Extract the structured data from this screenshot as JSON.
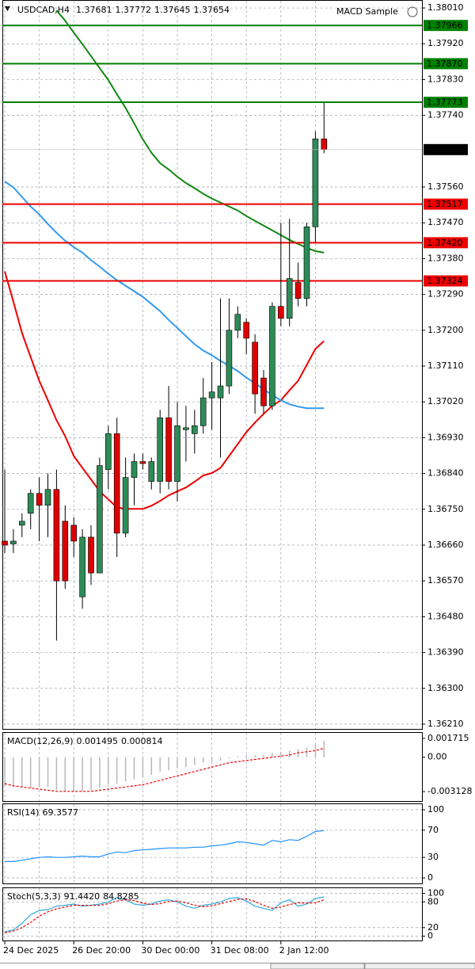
{
  "chart_data": [
    {
      "type": "candlestick",
      "title": "USDCAD,H4",
      "expert": "MACD Sample",
      "categories": [
        "24 Dec 2025",
        null,
        null,
        null,
        null,
        null,
        null,
        null,
        "26 Dec 20:00",
        null,
        null,
        null,
        null,
        null,
        null,
        null,
        "30 Dec 00:00",
        null,
        null,
        null,
        null,
        null,
        null,
        null,
        "31 Dec 08:00",
        null,
        null,
        null,
        null,
        null,
        null,
        null,
        "2 Jan 12:00",
        null,
        null,
        null,
        null,
        null
      ],
      "open": [
        1.3667,
        1.36663,
        1.3671,
        1.3674,
        1.3679,
        1.3676,
        1.368,
        1.3672,
        1.3671,
        1.3653,
        1.3668,
        1.3659,
        1.3685,
        1.3694,
        1.3669,
        1.3683,
        1.3687,
        1.3682,
        1.3682,
        1.3698,
        1.3682,
        1.3695,
        1.3694,
        1.3696,
        1.3703,
        1.3703,
        1.3706,
        1.372,
        1.3722,
        1.3717,
        1.3708,
        1.3701,
        1.3726,
        1.3723,
        1.3732,
        1.3728,
        1.3746,
        1.37681
      ],
      "high": [
        1.3685,
        1.367,
        1.3674,
        1.368,
        1.3683,
        1.3684,
        1.3685,
        1.3676,
        1.3673,
        1.367,
        1.3671,
        1.3688,
        1.3696,
        1.3698,
        1.3688,
        1.3689,
        1.3689,
        1.3688,
        1.37,
        1.3706,
        1.3702,
        1.3701,
        1.37,
        1.3708,
        1.3712,
        1.3728,
        1.3728,
        1.3726,
        1.3723,
        1.3719,
        1.371,
        1.3727,
        1.3747,
        1.3748,
        1.3737,
        1.3747,
        1.377,
        1.37772
      ],
      "low": [
        1.3664,
        1.3664,
        1.3668,
        1.367,
        1.3667,
        1.3668,
        1.3642,
        1.3655,
        1.3663,
        1.365,
        1.3656,
        1.3659,
        1.368,
        1.3663,
        1.3668,
        1.3676,
        1.3685,
        1.368,
        1.3679,
        1.368,
        1.3677,
        1.3687,
        1.3689,
        1.3694,
        1.3695,
        1.3688,
        1.3704,
        1.3718,
        1.3714,
        1.3699,
        1.3699,
        1.37,
        1.3721,
        1.3721,
        1.3726,
        1.3726,
        1.3742,
        1.37645
      ],
      "close": [
        1.3666,
        1.3667,
        1.3672,
        1.3679,
        1.3676,
        1.368,
        1.3657,
        1.3657,
        1.3667,
        1.3668,
        1.3659,
        1.3686,
        1.3694,
        1.3669,
        1.3683,
        1.3687,
        1.36865,
        1.3687,
        1.3698,
        1.3682,
        1.3696,
        1.36955,
        1.3696,
        1.3703,
        1.37045,
        1.3706,
        1.372,
        1.3724,
        1.3718,
        1.3704,
        1.3701,
        1.3726,
        1.3723,
        1.3733,
        1.3728,
        1.3746,
        1.37681,
        1.37654
      ],
      "up_color": "#2e8b57",
      "down_color": "#dd0000",
      "ylim": [
        1.36198,
        1.38028
      ],
      "yticks": [
        {
          "value": 1.3801,
          "label": "1.38010"
        },
        {
          "value": 1.3792,
          "label": "1.37920"
        },
        {
          "value": 1.3783,
          "label": "1.37830"
        },
        {
          "value": 1.3774,
          "label": "1.37740"
        },
        {
          "value": 1.3756,
          "label": "1.37560"
        },
        {
          "value": 1.3747,
          "label": "1.37470"
        },
        {
          "value": 1.3738,
          "label": "1.37380"
        },
        {
          "value": 1.3729,
          "label": "1.37290"
        },
        {
          "value": 1.372,
          "label": "1.37200"
        },
        {
          "value": 1.3711,
          "label": "1.37110"
        },
        {
          "value": 1.3702,
          "label": "1.37020"
        },
        {
          "value": 1.3693,
          "label": "1.36930"
        },
        {
          "value": 1.3684,
          "label": "1.36840"
        },
        {
          "value": 1.3675,
          "label": "1.36750"
        },
        {
          "value": 1.3666,
          "label": "1.36660"
        },
        {
          "value": 1.3657,
          "label": "1.36570"
        },
        {
          "value": 1.3648,
          "label": "1.36480"
        },
        {
          "value": 1.3639,
          "label": "1.36390"
        },
        {
          "value": 1.363,
          "label": "1.36300"
        },
        {
          "value": 1.3621,
          "label": "1.36210"
        }
      ],
      "grid": true,
      "current": 1.37654,
      "levels": [
        {
          "value": 1.37966,
          "color": "#008000"
        },
        {
          "value": 1.3787,
          "label": "1.37870",
          "color": "#008000"
        },
        {
          "value": 1.37773,
          "color": "#008000"
        },
        {
          "value": 1.37517,
          "color": "#ee0000"
        },
        {
          "value": 1.3742,
          "label": "1.37420",
          "color": "#ee0000"
        },
        {
          "value": 1.37324,
          "color": "#ee0000"
        }
      ],
      "lines": [
        {
          "color": "#ee0000",
          "values": [
            1.37348,
            1.37272,
            1.37193,
            1.37133,
            1.37073,
            1.37024,
            1.36974,
            1.36934,
            1.36884,
            1.36854,
            1.36825,
            1.36795,
            1.36775,
            1.36755,
            1.36751,
            1.36751,
            1.36751,
            1.36759,
            1.36771,
            1.36785,
            1.36795,
            1.36805,
            1.36819,
            1.36835,
            1.36841,
            1.36854,
            1.36884,
            1.36914,
            1.36944,
            1.36968,
            1.3699,
            1.3701,
            1.37024,
            1.37049,
            1.37073,
            1.37113,
            1.37153,
            1.37173
          ]
        },
        {
          "color": "#3399ee",
          "values": [
            1.37574,
            1.37559,
            1.37535,
            1.37511,
            1.37491,
            1.37467,
            1.37445,
            1.37425,
            1.37409,
            1.37395,
            1.37376,
            1.3736,
            1.37342,
            1.37326,
            1.37312,
            1.37298,
            1.37284,
            1.37266,
            1.37248,
            1.37226,
            1.37206,
            1.37185,
            1.37165,
            1.37149,
            1.37137,
            1.37123,
            1.37111,
            1.37097,
            1.37081,
            1.37067,
            1.37051,
            1.37037,
            1.37024,
            1.37014,
            1.37008,
            1.37004,
            1.37004,
            1.37004
          ]
        },
        {
          "color": "#118811",
          "values": [
            null,
            null,
            null,
            null,
            null,
            null,
            1.38004,
            1.37978,
            1.37948,
            1.37919,
            1.37889,
            1.37859,
            1.37829,
            1.37793,
            1.37759,
            1.3772,
            1.3768,
            1.37646,
            1.3762,
            1.37604,
            1.37586,
            1.3757,
            1.37557,
            1.37543,
            1.37531,
            1.37521,
            1.37511,
            1.37501,
            1.37487,
            1.37475,
            1.37463,
            1.37451,
            1.37439,
            1.37427,
            1.37417,
            1.37407,
            1.37399,
            1.37395
          ]
        }
      ]
    },
    {
      "type": "macd",
      "label": "MACD(12,26,9)",
      "ylim": [
        -0.00398,
        0.00221
      ],
      "yticks": [
        0.001715,
        {
          "value": 0,
          "label": "0.00"
        }
      ],
      "ylow_tick": -0.003128,
      "series": [
        {
          "color": "#b8b8b8",
          "style": "bar",
          "values": [
            -0.0026,
            -0.0027,
            -0.0028,
            -0.0028,
            -0.0027,
            -0.0027,
            -0.003,
            -0.0031,
            -0.0031,
            -0.0031,
            -0.003,
            -0.0028,
            -0.0025,
            -0.0024,
            -0.0022,
            -0.002,
            -0.0018,
            -0.0016,
            -0.0013,
            -0.0012,
            -0.001,
            -0.0009,
            -0.0007,
            -0.0005,
            -0.0004,
            -0.0003,
            -0.0001,
            0.0001,
            0.0002,
            0.0002,
            0.0002,
            0.0004,
            0.0005,
            0.0006,
            0.0007,
            0.0009,
            0.0012,
            0.001495
          ]
        },
        {
          "color": "#ee0000",
          "style": "dashed",
          "values": [
            -0.0024,
            -0.0026,
            -0.0027,
            -0.0028,
            -0.0029,
            -0.003,
            -0.0031,
            -0.0031,
            -0.0031,
            -0.0031,
            -0.0031,
            -0.003,
            -0.0029,
            -0.0028,
            -0.0027,
            -0.0026,
            -0.0025,
            -0.0023,
            -0.0021,
            -0.0019,
            -0.0017,
            -0.0015,
            -0.0013,
            -0.0011,
            -0.0009,
            -0.0007,
            -0.0005,
            -0.0004,
            -0.0003,
            -0.0002,
            -0.0001,
            0.0,
            0.0001,
            0.0002,
            0.0004,
            0.0005,
            0.0006,
            0.000814
          ]
        }
      ]
    },
    {
      "type": "oscillator",
      "label": "RSI(14)",
      "ylim": [
        -8.1,
        108.1
      ],
      "yticks": [
        100,
        70,
        30,
        0
      ],
      "series": [
        {
          "color": "#1e90ff",
          "style": "solid",
          "values": [
            24,
            24,
            26,
            28,
            30,
            31,
            30,
            30,
            31,
            32,
            31,
            31,
            35,
            38,
            37,
            40,
            41,
            42,
            43,
            44,
            44,
            44,
            45,
            45,
            47,
            48,
            50,
            53,
            52,
            50,
            48,
            55,
            53,
            56,
            55,
            61,
            68,
            69.3577
          ]
        }
      ]
    },
    {
      "type": "oscillator",
      "label": "Stoch(5,3,3)",
      "ylim": [
        -10,
        112
      ],
      "yticks": [
        100,
        80,
        20,
        0
      ],
      "series": [
        {
          "color": "#33aadd",
          "style": "solid",
          "last_value_label": "91.4420",
          "values": [
            10,
            15,
            30,
            50,
            60,
            62,
            70,
            72,
            75,
            70,
            72,
            75,
            80,
            90,
            85,
            75,
            72,
            75,
            82,
            85,
            80,
            70,
            65,
            72,
            75,
            80,
            88,
            90,
            82,
            70,
            65,
            60,
            78,
            85,
            70,
            75,
            88,
            91.442
          ]
        },
        {
          "color": "#ee0000",
          "style": "dashed",
          "values": [
            8,
            12,
            20,
            32,
            47,
            57,
            64,
            68,
            72,
            72,
            72,
            72,
            76,
            82,
            85,
            83,
            77,
            74,
            76,
            81,
            82,
            78,
            72,
            69,
            71,
            76,
            81,
            86,
            87,
            81,
            72,
            65,
            68,
            74,
            78,
            77,
            78,
            84.8285
          ]
        }
      ]
    }
  ]
}
